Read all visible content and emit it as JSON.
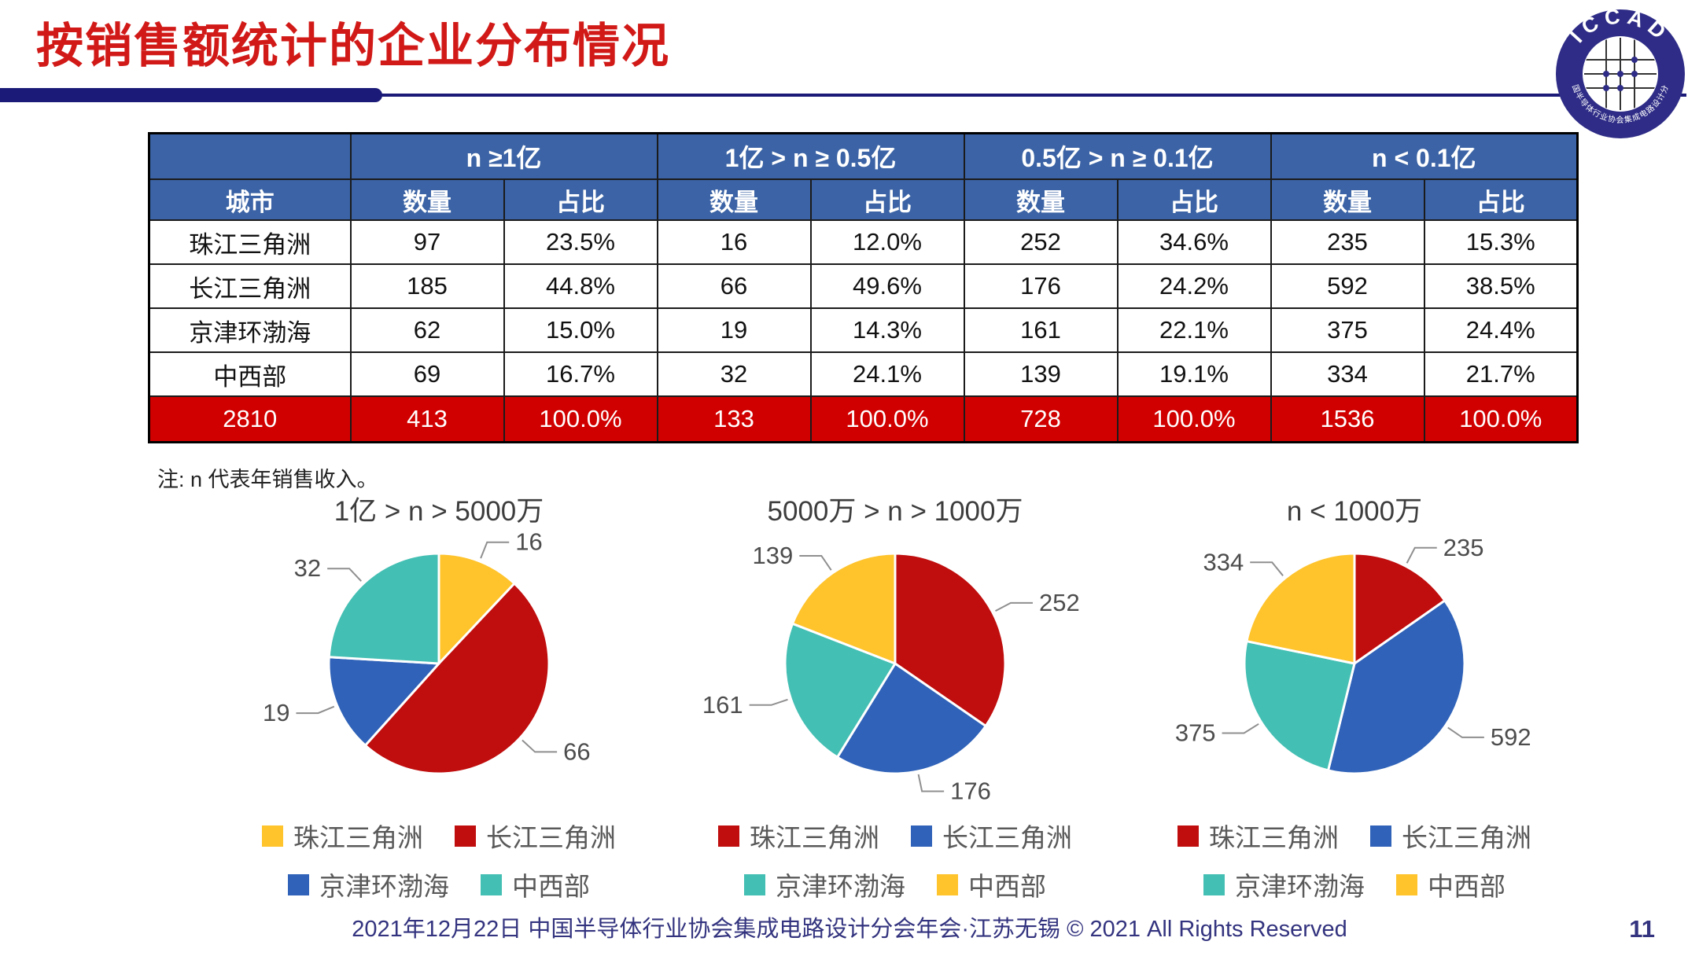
{
  "title": "按销售额统计的企业分布情况",
  "logo": {
    "text_top": "ICCAD",
    "text_bottom": "中国半导体行业协会集成电路设计分会"
  },
  "note": "注: n 代表年销售收入。",
  "footer": {
    "text": "2021年12月22日 中国半导体行业协会集成电路设计分会年会·江苏无锡 © 2021 All Rights Reserved",
    "page": "11"
  },
  "colors": {
    "accent_red": "#d11a18",
    "navy": "#1b1a78",
    "table_header_blue": "#3b63a5",
    "total_row_red": "#d10000",
    "footer_navy": "#33337f",
    "pie_yellow": "#ffc32b",
    "pie_red": "#c00d0d",
    "pie_blue": "#2f62b8",
    "pie_teal": "#44bfb3"
  },
  "chart_data": [
    {
      "type": "table",
      "city_header": "城市",
      "count_header": "数量",
      "share_header": "占比",
      "col_groups": [
        "n ≥1亿",
        "1亿 > n ≥ 0.5亿",
        "0.5亿 > n ≥ 0.1亿",
        "n < 0.1亿"
      ],
      "rows": [
        {
          "city": "珠江三角洲",
          "values": [
            "97",
            "23.5%",
            "16",
            "12.0%",
            "252",
            "34.6%",
            "235",
            "15.3%"
          ]
        },
        {
          "city": "长江三角洲",
          "values": [
            "185",
            "44.8%",
            "66",
            "49.6%",
            "176",
            "24.2%",
            "592",
            "38.5%"
          ]
        },
        {
          "city": "京津环渤海",
          "values": [
            "62",
            "15.0%",
            "19",
            "14.3%",
            "161",
            "22.1%",
            "375",
            "24.4%"
          ]
        },
        {
          "city": "中西部",
          "values": [
            "69",
            "16.7%",
            "32",
            "24.1%",
            "139",
            "19.1%",
            "334",
            "21.7%"
          ]
        }
      ],
      "total_row": [
        "2810",
        "413",
        "100.0%",
        "133",
        "100.0%",
        "728",
        "100.0%",
        "1536",
        "100.0%"
      ]
    },
    {
      "type": "pie",
      "title": "1亿 > n > 5000万",
      "labels": [
        "珠江三角洲",
        "长江三角洲",
        "京津环渤海",
        "中西部"
      ],
      "values": [
        16,
        66,
        19,
        32
      ],
      "colors": [
        "#ffc32b",
        "#c00d0d",
        "#2f62b8",
        "#44bfb3"
      ],
      "legend_position": "bottom"
    },
    {
      "type": "pie",
      "title": "5000万 > n > 1000万",
      "labels": [
        "珠江三角洲",
        "长江三角洲",
        "京津环渤海",
        "中西部"
      ],
      "values": [
        252,
        176,
        161,
        139
      ],
      "colors": [
        "#c00d0d",
        "#2f62b8",
        "#44bfb3",
        "#ffc32b"
      ],
      "legend_position": "bottom"
    },
    {
      "type": "pie",
      "title": "n < 1000万",
      "labels": [
        "珠江三角洲",
        "长江三角洲",
        "京津环渤海",
        "中西部"
      ],
      "values": [
        235,
        592,
        375,
        334
      ],
      "colors": [
        "#c00d0d",
        "#2f62b8",
        "#44bfb3",
        "#ffc32b"
      ],
      "legend_position": "bottom"
    }
  ]
}
